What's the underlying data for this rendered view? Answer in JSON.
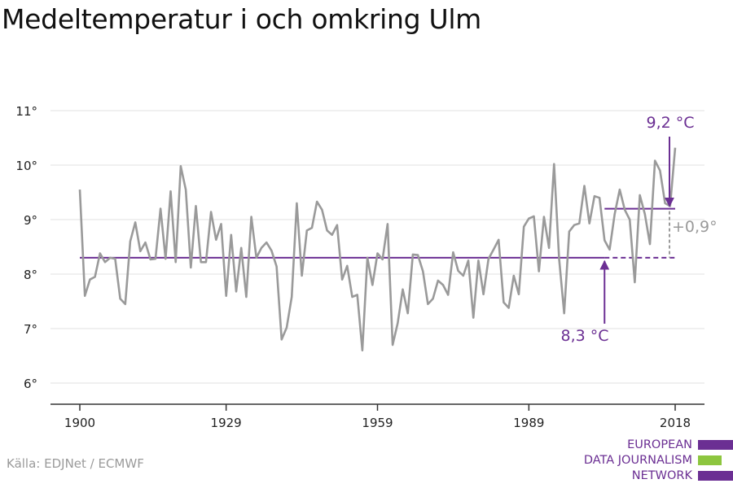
{
  "title": "Medeltemperatur i och omkring Ulm",
  "source": "Källa: EDJNet / ECMWF",
  "logo": {
    "lines": [
      "EUROPEAN",
      "DATA JOURNALISM",
      "NETWORK"
    ],
    "colors": {
      "purple": "#6b2f93",
      "green": "#8dc63f"
    }
  },
  "chart_data": {
    "type": "line",
    "title": "",
    "xlabel": "",
    "ylabel": "",
    "x_ticks": [
      "1900",
      "1929",
      "1959",
      "1989",
      "2018"
    ],
    "y_ticks": [
      "6°",
      "7°",
      "8°",
      "9°",
      "10°",
      "11°"
    ],
    "xlim": [
      1900,
      2018
    ],
    "ylim": [
      6,
      11
    ],
    "grid": true,
    "series": [
      {
        "color": "#9a9a9a",
        "x": [
          1900,
          1901,
          1902,
          1903,
          1904,
          1905,
          1906,
          1907,
          1908,
          1909,
          1910,
          1911,
          1912,
          1913,
          1914,
          1915,
          1916,
          1917,
          1918,
          1919,
          1920,
          1921,
          1922,
          1923,
          1924,
          1925,
          1926,
          1927,
          1928,
          1929,
          1930,
          1931,
          1932,
          1933,
          1934,
          1935,
          1936,
          1937,
          1938,
          1939,
          1940,
          1941,
          1942,
          1943,
          1944,
          1945,
          1946,
          1947,
          1948,
          1949,
          1950,
          1951,
          1952,
          1953,
          1954,
          1955,
          1956,
          1957,
          1958,
          1959,
          1960,
          1961,
          1962,
          1963,
          1964,
          1965,
          1966,
          1967,
          1968,
          1969,
          1970,
          1971,
          1972,
          1973,
          1974,
          1975,
          1976,
          1977,
          1978,
          1979,
          1980,
          1981,
          1982,
          1983,
          1984,
          1985,
          1986,
          1987,
          1988,
          1989,
          1990,
          1991,
          1992,
          1993,
          1994,
          1995,
          1996,
          1997,
          1998,
          1999,
          2000,
          2001,
          2002,
          2003,
          2004,
          2005,
          2006,
          2007,
          2008,
          2009,
          2010,
          2011,
          2012,
          2013,
          2014,
          2015,
          2016,
          2017,
          2018
        ],
        "values": [
          9.55,
          7.6,
          7.9,
          7.95,
          8.38,
          8.22,
          8.3,
          8.28,
          7.55,
          7.45,
          8.6,
          8.95,
          8.42,
          8.58,
          8.27,
          8.28,
          9.2,
          8.28,
          9.52,
          8.22,
          9.98,
          9.55,
          8.12,
          9.25,
          8.22,
          8.22,
          9.14,
          8.63,
          8.92,
          7.6,
          8.72,
          7.68,
          8.48,
          7.58,
          9.05,
          8.3,
          8.48,
          8.58,
          8.43,
          8.14,
          6.8,
          7.02,
          7.58,
          9.3,
          7.97,
          8.8,
          8.85,
          9.33,
          9.18,
          8.8,
          8.72,
          8.9,
          7.9,
          8.15,
          7.58,
          7.62,
          6.6,
          8.3,
          7.8,
          8.38,
          8.27,
          8.92,
          6.7,
          7.1,
          7.72,
          7.28,
          8.36,
          8.35,
          8.05,
          7.45,
          7.55,
          7.88,
          7.8,
          7.62,
          8.4,
          8.06,
          7.97,
          8.25,
          7.2,
          8.25,
          7.63,
          8.28,
          8.45,
          8.63,
          7.48,
          7.38,
          7.97,
          7.63,
          8.87,
          9.02,
          9.06,
          8.05,
          9.05,
          8.48,
          10.02,
          8.28,
          7.28,
          8.78,
          8.9,
          8.93,
          9.62,
          8.93,
          9.43,
          9.4,
          8.62,
          8.45,
          9.1,
          9.55,
          9.18,
          9.0,
          7.85,
          9.45,
          9.1,
          8.55,
          10.08,
          9.9,
          9.3,
          9.25,
          10.32
        ]
      }
    ],
    "reference_lines": [
      {
        "from": 1900,
        "to": 2018,
        "value": 8.3,
        "solid_until": 2004,
        "color": "#6b2f93"
      },
      {
        "from": 2004,
        "to": 2018,
        "value": 9.2,
        "color": "#6b2f93"
      }
    ],
    "annotations": {
      "high": {
        "text": "9,2 °C",
        "color": "#6b2f93"
      },
      "low": {
        "text": "8,3 °C",
        "color": "#6b2f93"
      },
      "diff": {
        "text": "+0,9°",
        "color": "#9a9a9a"
      }
    }
  }
}
